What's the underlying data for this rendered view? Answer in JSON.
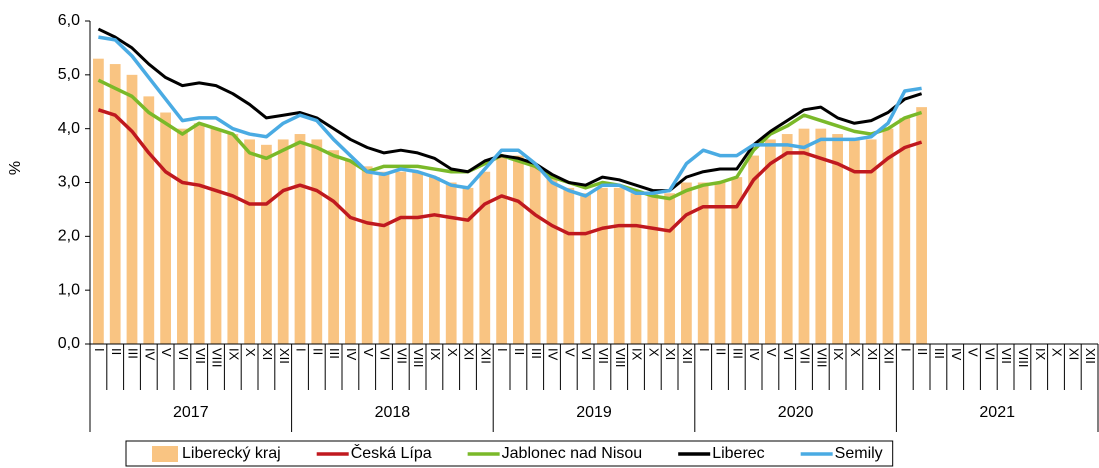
{
  "chart_data": {
    "type": "bar-line",
    "y_label": "%",
    "categories": [
      "I",
      "II",
      "III",
      "IV",
      "V",
      "VI",
      "VII",
      "VIII",
      "IX",
      "X",
      "XI",
      "XII",
      "I",
      "II",
      "III",
      "IV",
      "V",
      "VI",
      "VII",
      "VIII",
      "IX",
      "X",
      "XI",
      "XII",
      "I",
      "II",
      "III",
      "IV",
      "V",
      "VI",
      "VII",
      "VIII",
      "IX",
      "X",
      "XI",
      "XII",
      "I",
      "II",
      "III",
      "IV",
      "V",
      "VI",
      "VII",
      "VIII",
      "IX",
      "X",
      "XI",
      "XII",
      "I",
      "II",
      "III",
      "IV",
      "V",
      "VI",
      "VII",
      "VIII",
      "IX",
      "X",
      "XI",
      "XII"
    ],
    "groups": [
      "2017",
      "2018",
      "2019",
      "2020",
      "2021"
    ],
    "ylim": [
      0,
      6
    ],
    "yticks": [
      {
        "value": 0,
        "label": "0,0"
      },
      {
        "value": 1,
        "label": "1,0"
      },
      {
        "value": 2,
        "label": "2,0"
      },
      {
        "value": 3,
        "label": "3,0"
      },
      {
        "value": 4,
        "label": "4,0"
      },
      {
        "value": 5,
        "label": "5,0"
      },
      {
        "value": 6,
        "label": "6,0"
      }
    ],
    "series": [
      {
        "name": "Liberecký kraj",
        "kind": "bar",
        "color": "#f9c482",
        "values": [
          5.3,
          5.2,
          5.0,
          4.6,
          4.3,
          4.0,
          4.1,
          4.0,
          3.9,
          3.8,
          3.7,
          3.8,
          3.9,
          3.8,
          3.6,
          3.4,
          3.3,
          3.2,
          3.2,
          3.2,
          3.1,
          3.0,
          2.9,
          3.2,
          3.5,
          3.5,
          3.3,
          3.1,
          2.9,
          2.8,
          2.9,
          2.9,
          2.8,
          2.8,
          2.8,
          3.0,
          3.0,
          3.0,
          3.1,
          3.5,
          3.8,
          3.9,
          4.0,
          4.0,
          3.9,
          3.8,
          3.8,
          4.0,
          4.2,
          4.4,
          null,
          null,
          null,
          null,
          null,
          null,
          null,
          null,
          null,
          null
        ]
      },
      {
        "name": "Česká Lípa",
        "kind": "line",
        "color": "#c0191f",
        "values": [
          4.35,
          4.25,
          3.95,
          3.55,
          3.2,
          3.0,
          2.95,
          2.85,
          2.75,
          2.6,
          2.6,
          2.85,
          2.95,
          2.85,
          2.65,
          2.35,
          2.25,
          2.2,
          2.35,
          2.35,
          2.4,
          2.35,
          2.3,
          2.6,
          2.75,
          2.65,
          2.4,
          2.2,
          2.05,
          2.05,
          2.15,
          2.2,
          2.2,
          2.15,
          2.1,
          2.4,
          2.55,
          2.55,
          2.55,
          3.05,
          3.35,
          3.55,
          3.55,
          3.45,
          3.35,
          3.2,
          3.2,
          3.45,
          3.65,
          3.75,
          null,
          null,
          null,
          null,
          null,
          null,
          null,
          null,
          null,
          null
        ]
      },
      {
        "name": "Jablonec nad Nisou",
        "kind": "line",
        "color": "#7ab929",
        "values": [
          4.9,
          4.75,
          4.6,
          4.3,
          4.1,
          3.9,
          4.1,
          4.0,
          3.9,
          3.55,
          3.45,
          3.6,
          3.75,
          3.65,
          3.5,
          3.4,
          3.2,
          3.3,
          3.3,
          3.3,
          3.25,
          3.2,
          3.2,
          3.35,
          3.5,
          3.4,
          3.3,
          3.1,
          3.0,
          2.9,
          3.0,
          2.95,
          2.85,
          2.75,
          2.7,
          2.85,
          2.95,
          3.0,
          3.1,
          3.6,
          3.9,
          4.05,
          4.25,
          4.15,
          4.05,
          3.95,
          3.9,
          4.0,
          4.2,
          4.3,
          null,
          null,
          null,
          null,
          null,
          null,
          null,
          null,
          null,
          null
        ]
      },
      {
        "name": "Liberec",
        "kind": "line",
        "color": "#000000",
        "values": [
          5.85,
          5.7,
          5.5,
          5.2,
          4.95,
          4.8,
          4.85,
          4.8,
          4.65,
          4.45,
          4.2,
          4.25,
          4.3,
          4.2,
          4.0,
          3.8,
          3.65,
          3.55,
          3.6,
          3.55,
          3.45,
          3.25,
          3.2,
          3.4,
          3.5,
          3.45,
          3.35,
          3.15,
          3.0,
          2.95,
          3.1,
          3.05,
          2.95,
          2.85,
          2.85,
          3.1,
          3.2,
          3.25,
          3.25,
          3.7,
          3.95,
          4.15,
          4.35,
          4.4,
          4.2,
          4.1,
          4.15,
          4.3,
          4.55,
          4.65,
          null,
          null,
          null,
          null,
          null,
          null,
          null,
          null,
          null,
          null
        ]
      },
      {
        "name": "Semily",
        "kind": "line",
        "color": "#4aabe3",
        "values": [
          5.7,
          5.65,
          5.35,
          4.95,
          4.55,
          4.15,
          4.2,
          4.2,
          4.0,
          3.9,
          3.85,
          4.1,
          4.25,
          4.15,
          3.8,
          3.5,
          3.2,
          3.15,
          3.25,
          3.2,
          3.1,
          2.95,
          2.9,
          3.25,
          3.6,
          3.6,
          3.35,
          3.0,
          2.85,
          2.75,
          2.95,
          2.95,
          2.8,
          2.8,
          2.85,
          3.35,
          3.6,
          3.5,
          3.5,
          3.7,
          3.7,
          3.7,
          3.65,
          3.8,
          3.8,
          3.8,
          3.85,
          4.1,
          4.7,
          4.75,
          null,
          null,
          null,
          null,
          null,
          null,
          null,
          null,
          null,
          null
        ]
      }
    ]
  }
}
